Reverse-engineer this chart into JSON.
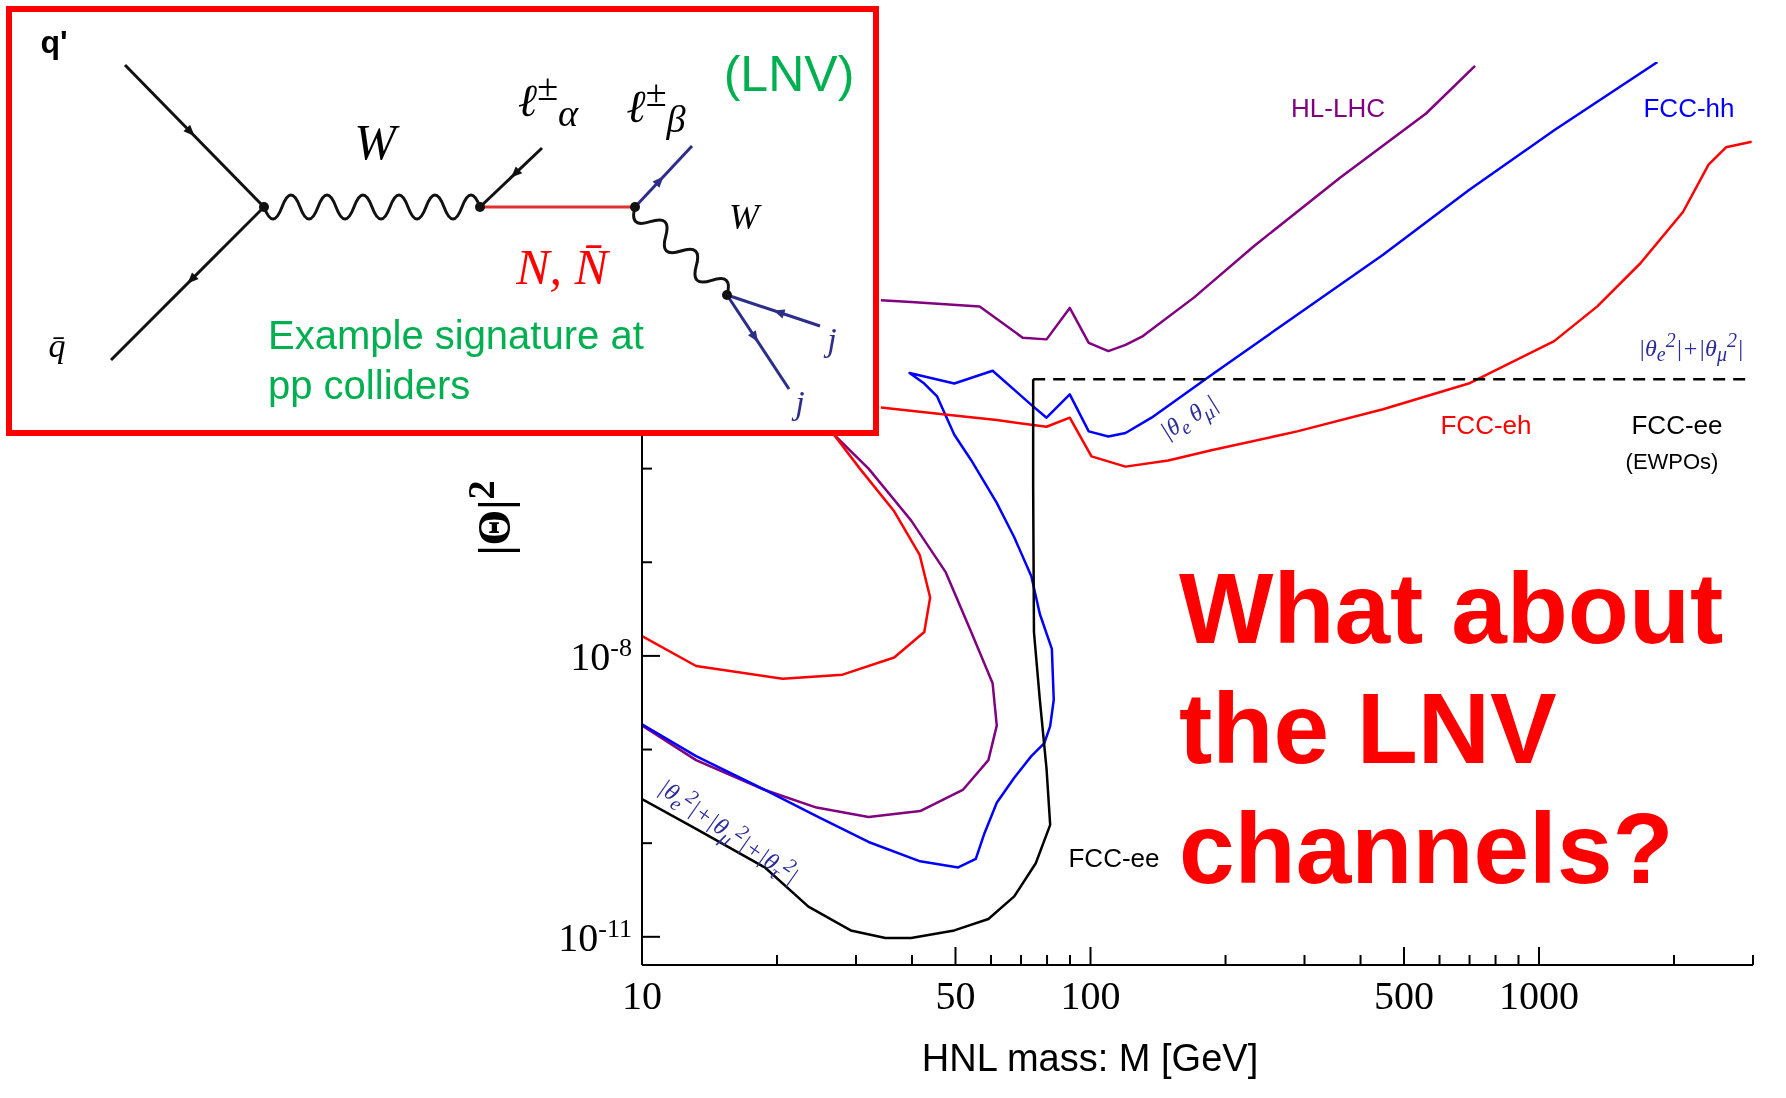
{
  "chart_data": {
    "type": "line",
    "xlabel": "HNL mass: M [GeV]",
    "ylabel": "|Θ|$^{2}$",
    "log": "xy",
    "xlim": [
      10,
      3000
    ],
    "xticks": [
      10,
      {
        "value": 20,
        "label": null
      },
      {
        "value": 30,
        "label": null
      },
      {
        "value": 40,
        "label": null
      },
      50,
      {
        "value": 60,
        "label": null
      },
      {
        "value": 70,
        "label": null
      },
      {
        "value": 80,
        "label": null
      },
      {
        "value": 90,
        "label": null
      },
      100,
      {
        "value": 200,
        "label": null
      },
      {
        "value": 300,
        "label": null
      },
      {
        "value": 400,
        "label": null
      },
      500,
      {
        "value": 600,
        "label": null
      },
      {
        "value": 700,
        "label": null
      },
      {
        "value": 800,
        "label": null
      },
      {
        "value": 900,
        "label": null
      },
      1000,
      {
        "value": 2000,
        "label": null
      },
      {
        "value": 3000,
        "label": null
      }
    ],
    "ylim": [
      5e-12,
      0.022
    ],
    "yticks": [
      {
        "value": 1e-11,
        "label": "10$^{-11}$"
      },
      {
        "value": 1e-10,
        "label": null
      },
      {
        "value": 1e-09,
        "label": null
      },
      {
        "value": 1e-08,
        "label": "10$^{-8}$"
      },
      {
        "value": 1e-07,
        "label": null
      },
      {
        "value": 1e-06,
        "label": null
      },
      {
        "value": 1e-05,
        "label": null
      },
      {
        "value": 0.0001,
        "label": null
      },
      {
        "value": 0.001,
        "label": null
      },
      {
        "value": 0.01,
        "label": null
      }
    ],
    "series": [
      {
        "name": "HL-LHC",
        "color": "#800080",
        "x": [
          10,
          13.2,
          18.8,
          24.5,
          32,
          41.7,
          51.9,
          59.2,
          61.8,
          60.5,
          54.2,
          47.5,
          39.8,
          32,
          26.8,
          30,
          34.1,
          39.8,
          56.6,
          70.6,
          79.8,
          89.9,
          99.1,
          109.6,
          119.7,
          130.9,
          170,
          232,
          360,
          560,
          720
        ],
        "values": [
          1.8e-09,
          7.7e-10,
          3.7e-10,
          2.4e-10,
          1.9e-10,
          2.2e-10,
          3.7e-10,
          7.7e-10,
          1.8e-09,
          5.1e-09,
          1.8e-08,
          7.9e-08,
          2.8e-07,
          1e-06,
          2.3e-06,
          null,
          6.3e-05,
          6e-05,
          5.4e-05,
          2.5e-05,
          2.4e-05,
          5.2e-05,
          2.2e-05,
          1.8e-05,
          2.1e-05,
          2.6e-05,
          6.7e-05,
          0.00024,
          0.00128,
          0.0062,
          0.02
        ]
      },
      {
        "name": "FCC-hh",
        "color": "#0000ff",
        "x": [
          10,
          13.2,
          18.8,
          24.5,
          32,
          41.7,
          50.7,
          55.5,
          58,
          61.8,
          67.6,
          73.8,
          78.9,
          81.3,
          82.8,
          82,
          77.1,
          73.8,
          67.6,
          61.8,
          54.2,
          49.7,
          45.5,
          42.6,
          39.5,
          49.7,
          60.5,
          73.8,
          79.8,
          89.9,
          99.1,
          109.6,
          119.7,
          136.8,
          186,
          289,
          449,
          697,
          1081,
          1837
        ],
        "values": [
          1.86e-09,
          8.5e-10,
          3.7e-10,
          1.95e-10,
          1.03e-10,
          6.4e-11,
          5.5e-11,
          6.8e-11,
          1.27e-10,
          2.7e-10,
          5e-10,
          8.5e-10,
          1.17e-09,
          1.78e-09,
          3.4e-09,
          1.19e-08,
          2.8e-08,
          7.1e-08,
          1.85e-07,
          4.3e-07,
          1.23e-06,
          2.3e-06,
          5.9e-06,
          8.1e-06,
          1.05e-05,
          8.1e-06,
          1.11e-05,
          4.8e-06,
          3.5e-06,
          6.2e-06,
          2.5e-06,
          2.2e-06,
          2.4e-06,
          3.5e-06,
          1e-05,
          4.4e-05,
          0.000192,
          0.00094,
          0.0041,
          0.022
        ]
      },
      {
        "name": "FCC-eh",
        "color": "#ff0000",
        "x": [
          10,
          13.2,
          20.6,
          28,
          36.5,
          42.6,
          43.9,
          41.6,
          36.5,
          30.6,
          26.8,
          30,
          34.1,
          49.7,
          61.8,
          79.8,
          89.9,
          100.5,
          119.7,
          149,
          186,
          289,
          449,
          697,
          1081,
          1349,
          1683,
          2094,
          2388,
          2612,
          2979
        ],
        "values": [
          1.63e-08,
          7.8e-09,
          5.7e-09,
          6.3e-09,
          9.6e-09,
          1.8e-08,
          4.2e-08,
          1.2e-07,
          3.5e-07,
          1e-06,
          2.3e-06,
          null,
          4.5e-06,
          3.7e-06,
          3.3e-06,
          2.8e-06,
          3.5e-06,
          1.35e-06,
          1.05e-06,
          1.22e-06,
          1.57e-06,
          2.5e-06,
          4.3e-06,
          8.1e-06,
          2.3e-05,
          5.4e-05,
          0.000156,
          0.00055,
          0.00176,
          0.0027,
          0.0031
        ]
      },
      {
        "name": "FCC-ee",
        "color": "#000000",
        "x": [
          10,
          13.2,
          18.8,
          23.5,
          29.2,
          34.9,
          39.8,
          49.7,
          59.2,
          67.6,
          75.5,
          81.3,
          79.8,
          77.1,
          74.8,
          74.5,
          74.5
        ],
        "values": [
          2.96e-10,
          1.42e-10,
          5.5e-11,
          2.1e-11,
          1.17e-11,
          9.7e-12,
          9.7e-12,
          1.17e-11,
          1.55e-11,
          2.7e-11,
          6.1e-11,
          1.57e-10,
          6.2e-10,
          3.4e-09,
          1.8e-08,
          6.5e-07,
          9e-06
        ]
      },
      {
        "name": "FCC-ee",
        "color": "#000000",
        "line_style": "dashed",
        "x": [
          74.5,
          3000
        ],
        "values": [
          9e-06,
          9e-06
        ]
      }
    ],
    "annotations": [
      "|θ$_{e}$$^{2}$|+|θ$_{μ}$$^{2}$|",
      "|θ$_{e}$ θ$_{μ}$|",
      "|θ$_{e}$$^{2}$|+|θ$_{μ}$$^{2}$|+|θ$_{τ}$$^{2}$|",
      "(EWPOs)",
      "What about the LNV channels?",
      "q'",
      "q̄",
      "W",
      "ℓ$^{±}$$_{α}$",
      "ℓ$^{±}$$_{β}$",
      "W",
      "N, N̄",
      "j",
      "j",
      "(LNV)",
      "Example signature at pp colliders"
    ]
  }
}
